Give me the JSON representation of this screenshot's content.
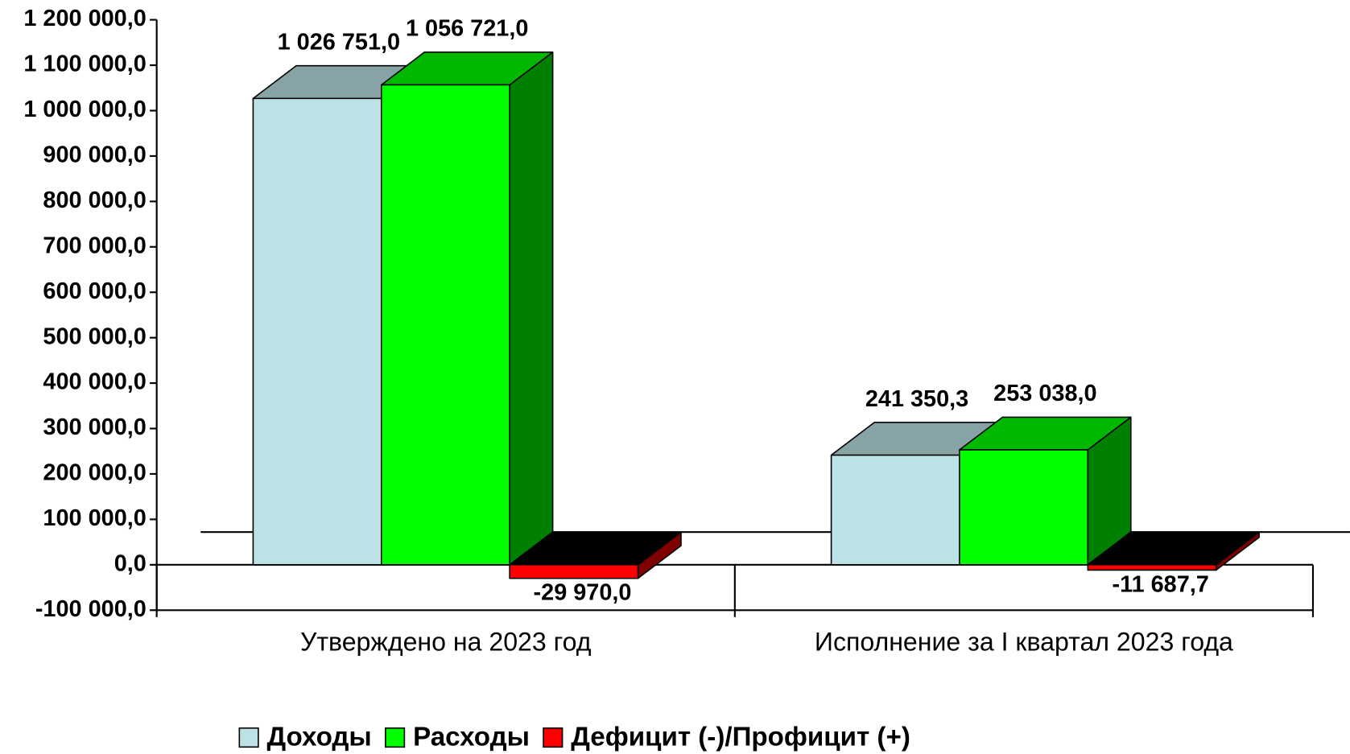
{
  "chart_data": {
    "type": "bar3d",
    "categories": [
      "Утверждено на 2023 год",
      "Исполнение за I квартал 2023 года"
    ],
    "series": [
      {
        "name": "Доходы",
        "color": "#bce2e6",
        "values": [
          1026751.0,
          241350.3
        ],
        "value_labels": [
          "1 026 751,0",
          "241 350,3"
        ]
      },
      {
        "name": "Расходы",
        "color": "#00ff00",
        "values": [
          1056721.0,
          253038.0
        ],
        "value_labels": [
          "1 056 721,0",
          "253 038,0"
        ]
      },
      {
        "name": "Дефицит (-)/Профицит (+)",
        "color": "#ff0000",
        "values": [
          -29970.0,
          -11687.7
        ],
        "value_labels": [
          "-29 970,0",
          "-11 687,7"
        ]
      }
    ],
    "ylim": [
      -100000,
      1200000
    ],
    "yticks": [
      {
        "value": -100000,
        "label": "-100 000,0"
      },
      {
        "value": 0,
        "label": "0,0"
      },
      {
        "value": 100000,
        "label": "100 000,0"
      },
      {
        "value": 200000,
        "label": "200 000,0"
      },
      {
        "value": 300000,
        "label": "300 000,0"
      },
      {
        "value": 400000,
        "label": "400 000,0"
      },
      {
        "value": 500000,
        "label": "500 000,0"
      },
      {
        "value": 600000,
        "label": "600 000,0"
      },
      {
        "value": 700000,
        "label": "700 000,0"
      },
      {
        "value": 800000,
        "label": "800 000,0"
      },
      {
        "value": 900000,
        "label": "900 000,0"
      },
      {
        "value": 1000000,
        "label": "1 000 000,0"
      },
      {
        "value": 1100000,
        "label": "1 100 000,0"
      },
      {
        "value": 1200000,
        "label": "1 200 000,0"
      }
    ],
    "legend": "bottom"
  }
}
